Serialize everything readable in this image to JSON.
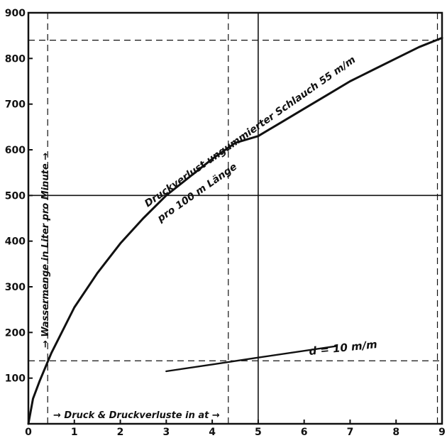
{
  "chart_data": {
    "type": "line",
    "title": "",
    "xlabel": "→ Druck & Druckverluste in at →",
    "ylabel": "→ Wassermenge in Liter pro Minute →",
    "xlim": [
      0,
      9
    ],
    "ylim": [
      0,
      900
    ],
    "x_ticks": [
      "0",
      "1",
      "2",
      "3",
      "4",
      "5",
      "6",
      "7",
      "8",
      "9"
    ],
    "y_ticks": [
      "100",
      "200",
      "300",
      "400",
      "500",
      "600",
      "700",
      "800",
      "900"
    ],
    "grid": false,
    "series": [
      {
        "name": "Druckverlust ungummierter Schlauch 55 m/m pro 100 m Länge",
        "x": [
          0,
          0.1,
          0.25,
          0.5,
          1,
          1.5,
          2,
          2.5,
          3,
          3.5,
          4,
          4.5,
          5,
          5.5,
          6,
          6.5,
          7,
          7.5,
          8,
          8.5,
          9
        ],
        "y": [
          0,
          55,
          95,
          155,
          255,
          330,
          395,
          450,
          500,
          540,
          580,
          615,
          630,
          660,
          690,
          720,
          750,
          775,
          800,
          825,
          845
        ]
      },
      {
        "name": "d = 10 m/m",
        "x": [
          3,
          4,
          5,
          6.7
        ],
        "y": [
          115,
          130,
          145,
          170
        ]
      }
    ],
    "annotations": {
      "curve_label_1": "Druckverlust ungummierter Schlauch 55 m/m",
      "curve_label_2": "pro 100 m Länge",
      "d_label": "d = 10 m/m"
    },
    "reference_lines": [
      {
        "kind": "horizontal",
        "y": 840,
        "style": "dashed"
      },
      {
        "kind": "horizontal",
        "y": 500,
        "style": "solid"
      },
      {
        "kind": "horizontal",
        "y": 138,
        "style": "dashed"
      },
      {
        "kind": "vertical",
        "x": 5,
        "style": "solid"
      },
      {
        "kind": "vertical",
        "x": 0.42,
        "style": "dashed"
      },
      {
        "kind": "vertical",
        "x": 4.35,
        "style": "dashed"
      },
      {
        "kind": "vertical",
        "x": 8.9,
        "style": "dashed"
      }
    ]
  }
}
